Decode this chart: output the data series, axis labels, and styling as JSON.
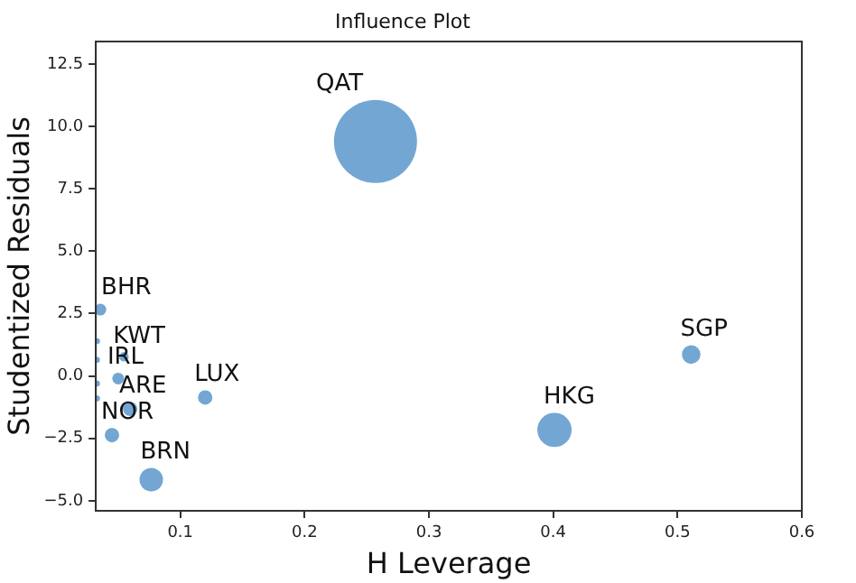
{
  "chart_data": {
    "type": "bubble",
    "title": "Influence Plot",
    "xlabel": "H Leverage",
    "ylabel": "Studentized Residuals",
    "x": [
      0.257,
      0.0357,
      0.0546,
      0.05,
      0.0596,
      0.045,
      0.0766,
      0.12,
      0.401,
      0.511,
      0.033,
      0.033,
      0.033,
      0.033
    ],
    "values": [
      9.4,
      2.66,
      0.77,
      -0.1,
      -1.32,
      -2.37,
      -4.15,
      -0.86,
      -2.16,
      0.86,
      1.4,
      0.65,
      -0.3,
      -0.9
    ],
    "sizes": [
      1,
      0.02,
      0.013,
      0.02,
      0.03,
      0.03,
      0.08,
      0.03,
      0.17,
      0.05,
      0.005,
      0.005,
      0.005,
      0.005
    ],
    "color": "#5090c8",
    "xlim": [
      0.032,
      0.6
    ],
    "xticks": [
      0.1,
      0.2,
      0.3,
      0.4,
      0.5,
      0.6
    ],
    "ylim": [
      -5.4,
      13.4
    ],
    "yticks": [
      {
        "value": -5,
        "label": "−5.0"
      },
      {
        "value": -2.5,
        "label": "−2.5"
      },
      {
        "value": 0,
        "label": "0.0"
      },
      {
        "value": 2.5,
        "label": "2.5"
      },
      {
        "value": 5,
        "label": "5.0"
      },
      {
        "value": 7.5,
        "label": "7.5"
      },
      {
        "value": 10,
        "label": "10.0"
      },
      {
        "value": 12.5,
        "label": "12.5"
      }
    ],
    "grid": false,
    "legend": false,
    "annotations": [
      {
        "text": "QAT",
        "x": 0.257,
        "y": 9.4
      },
      {
        "text": "BHR",
        "x": 0.0357,
        "y": 2.66
      },
      {
        "text": "KWT",
        "x": 0.0546,
        "y": 0.77
      },
      {
        "text": "IRL",
        "x": 0.05,
        "y": -0.1
      },
      {
        "text": "ARE",
        "x": 0.0596,
        "y": -1.32
      },
      {
        "text": "NOR",
        "x": 0.045,
        "y": -2.37
      },
      {
        "text": "BRN",
        "x": 0.0766,
        "y": -4.15
      },
      {
        "text": "LUX",
        "x": 0.12,
        "y": -0.86
      },
      {
        "text": "HKG",
        "x": 0.401,
        "y": -2.16
      },
      {
        "text": "SGP",
        "x": 0.511,
        "y": 0.86
      }
    ]
  }
}
